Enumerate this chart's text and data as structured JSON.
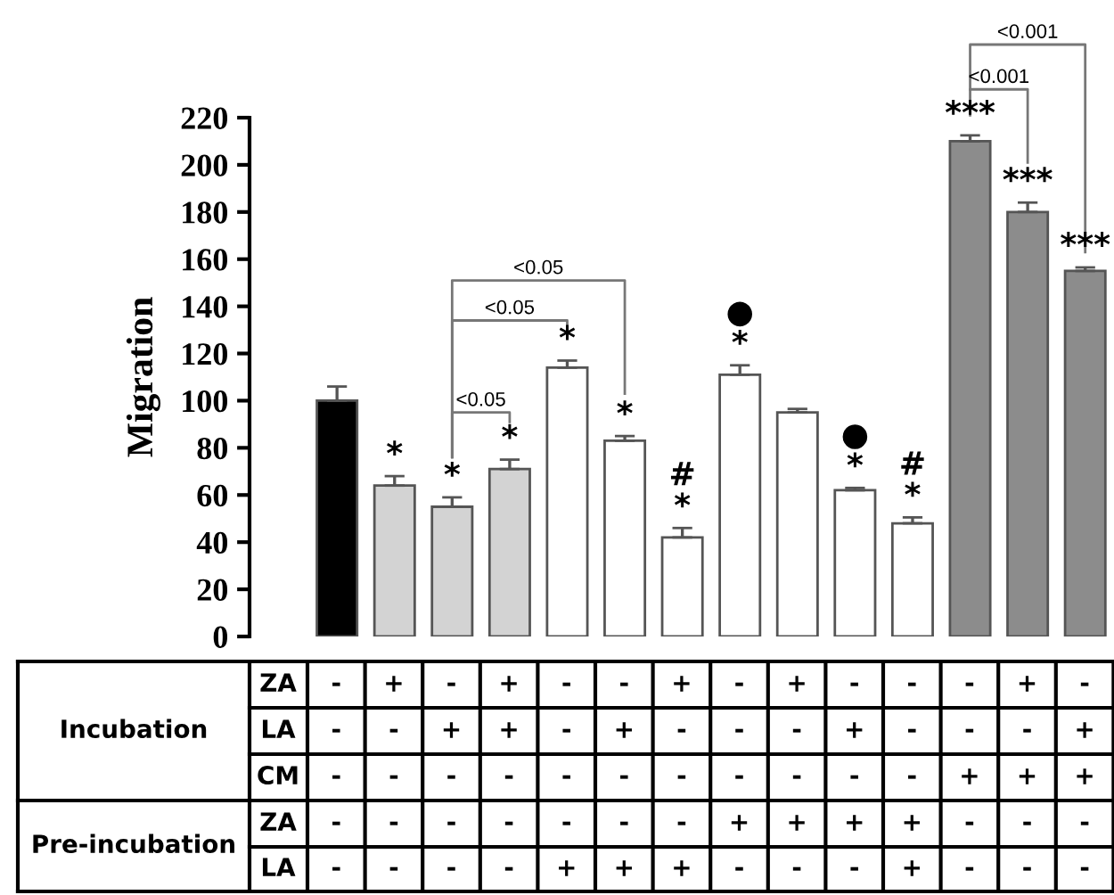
{
  "chart_data": {
    "type": "bar",
    "ylabel": "Migration",
    "categories": [
      "-\n-\n-\n-\n-",
      "+\n-\n-\n-\n-",
      "-\n+\n-\n-\n-",
      "+\n+\n-\n-\n-",
      "-\n-\n-\n-\n+",
      "-\n+\n-\n-\n+",
      "+\n-\n-\n-\n+",
      "-\n-\n-\n+\n-",
      "+\n-\n-\n+\n-",
      "-\n+\n-\n+\n-",
      "-\n-\n-\n+\n+",
      "-\n-\n+\n-\n-",
      "+\n-\n+\n-\n-",
      "-\n+\n+\n-\n-"
    ],
    "values": [
      100,
      64,
      55,
      71,
      114,
      83,
      42,
      111,
      95,
      62,
      48,
      210,
      180,
      155
    ],
    "errors": [
      6,
      4,
      4,
      4,
      3,
      2,
      4,
      4,
      1.5,
      1,
      2.5,
      2.5,
      4,
      1.5
    ],
    "colors": [
      "#000000",
      "#d3d3d3",
      "#d3d3d3",
      "#d3d3d3",
      "#ffffff",
      "#ffffff",
      "#ffffff",
      "#ffffff",
      "#ffffff",
      "#ffffff",
      "#ffffff",
      "#8c8c8c",
      "#8c8c8c",
      "#8c8c8c"
    ],
    "value_labels": [
      null,
      "*",
      "*",
      "*",
      "*",
      "*",
      "#\n*",
      "●\n*",
      null,
      "●\n*",
      "#\n*",
      "***",
      "***",
      "***"
    ],
    "ylim": [
      0,
      220
    ],
    "yticks": [
      0,
      20,
      40,
      60,
      80,
      100,
      120,
      140,
      160,
      180,
      200,
      220
    ],
    "grid": false,
    "annotations": [
      "<0.05",
      "<0.05",
      "<0.05",
      "<0.001",
      "<0.001",
      "Incubation",
      "Pre-incubation",
      "ZA",
      "LA",
      "CM",
      "ZA",
      "LA"
    ]
  }
}
